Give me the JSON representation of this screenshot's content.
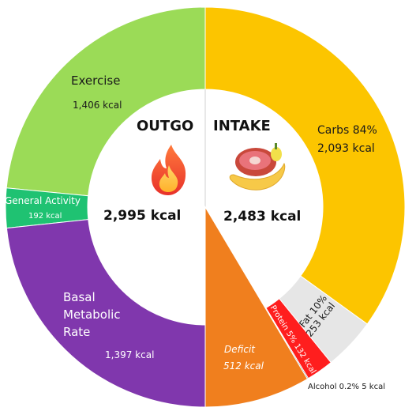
{
  "chart_data": {
    "type": "donut",
    "outgo": {
      "title": "OUTGO",
      "total": "2,995 kcal",
      "segments": [
        {
          "name": "Exercise",
          "label": "Exercise",
          "value_label": "1,406 kcal",
          "value": 1406,
          "color": "#9bdb57"
        },
        {
          "name": "General Activity",
          "label": "General Activity",
          "value_label": "192 kcal",
          "value": 192,
          "color": "#1fc272"
        },
        {
          "name": "Basal Metabolic Rate",
          "label_lines": [
            "Basal",
            "Metabolic",
            "Rate"
          ],
          "value_label": "1,397 kcal",
          "value": 1397,
          "color": "#8037ad"
        }
      ]
    },
    "intake": {
      "title": "INTAKE",
      "total": "2,483 kcal",
      "segments": [
        {
          "name": "Carbs",
          "label": "Carbs 84%",
          "value_label": "2,093 kcal",
          "value": 2093,
          "color": "#fcc500"
        },
        {
          "name": "Fat",
          "label": "Fat 10%",
          "value_label": "253 kcal",
          "value": 253,
          "color": "#e6e6e6"
        },
        {
          "name": "Protein",
          "label": "Protein 5% 132 kcal",
          "value": 132,
          "color": "#ff1e1e"
        },
        {
          "name": "Alcohol",
          "label": "Alcohol 0.2% 5 kcal",
          "value": 5,
          "color": "#111111"
        },
        {
          "name": "Deficit",
          "label": "Deficit",
          "value_label": "512 kcal",
          "value": 512,
          "color": "#f07f1e"
        }
      ]
    }
  },
  "icons": {
    "outgo": "flame-icon",
    "intake": "food-icon"
  }
}
